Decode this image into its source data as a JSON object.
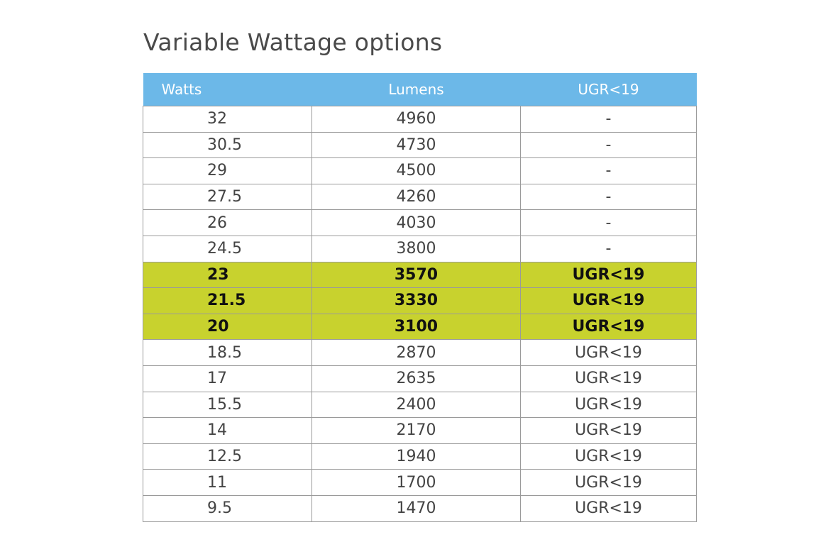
{
  "title": "Variable Wattage options",
  "table": {
    "header": [
      "Watts",
      "Lumens",
      "UGR<19"
    ],
    "rows": [
      [
        "32",
        "4960",
        "-"
      ],
      [
        "30.5",
        "4730",
        "-"
      ],
      [
        "29",
        "4500",
        "-"
      ],
      [
        "27.5",
        "4260",
        "-"
      ],
      [
        "26",
        "4030",
        "-"
      ],
      [
        "24.5",
        "3800",
        "-"
      ],
      [
        "23",
        "3570",
        "UGR<19"
      ],
      [
        "21.5",
        "3330",
        "UGR<19"
      ],
      [
        "20",
        "3100",
        "UGR<19"
      ],
      [
        "18.5",
        "2870",
        "UGR<19"
      ],
      [
        "17",
        "2635",
        "UGR<19"
      ],
      [
        "15.5",
        "2400",
        "UGR<19"
      ],
      [
        "14",
        "2170",
        "UGR<19"
      ],
      [
        "12.5",
        "1940",
        "UGR<19"
      ],
      [
        "11",
        "1700",
        "UGR<19"
      ],
      [
        "9.5",
        "1470",
        "UGR<19"
      ]
    ]
  }
}
